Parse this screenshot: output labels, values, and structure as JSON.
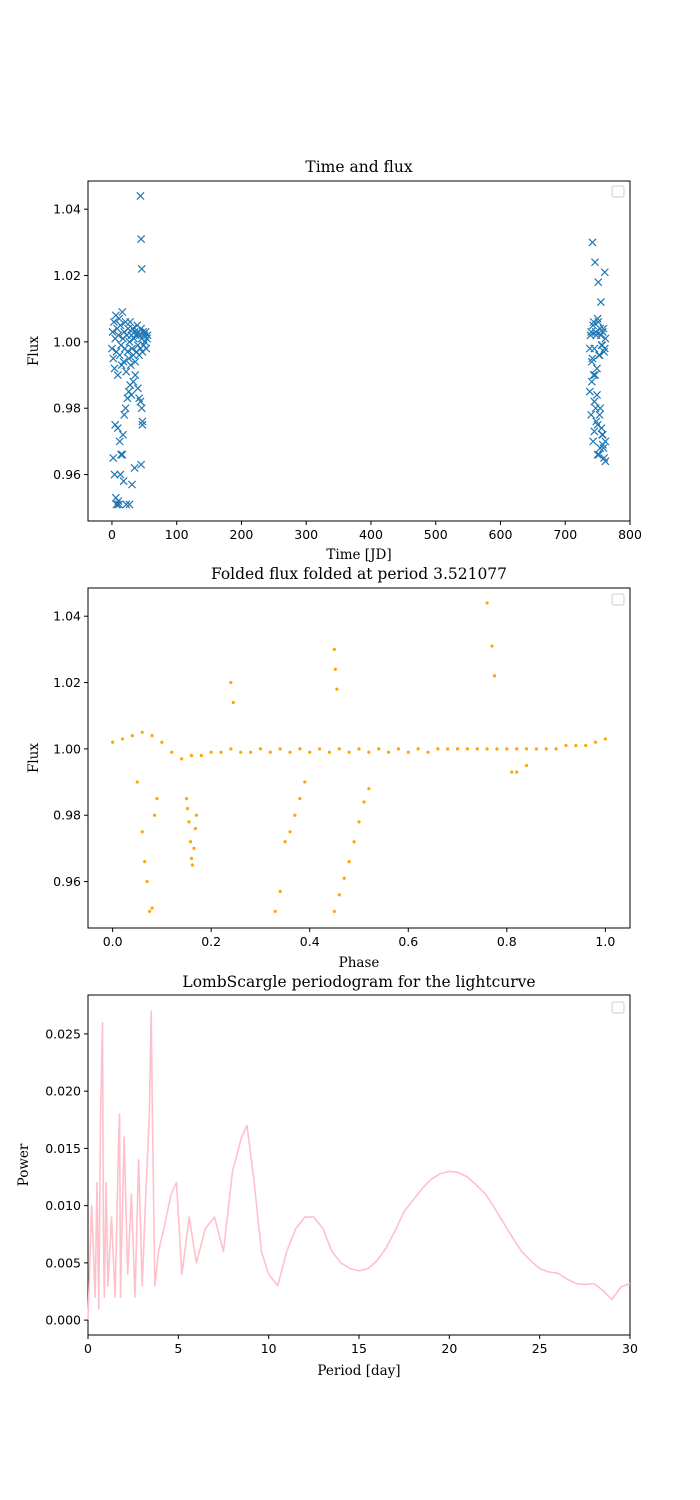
{
  "chart_data": [
    {
      "type": "scatter",
      "title": "Time and flux",
      "xlabel": "Time [JD]",
      "ylabel": "Flux",
      "xlim": [
        -37,
        800
      ],
      "ylim": [
        0.946,
        1.0485
      ],
      "xticks": [
        0,
        100,
        200,
        300,
        400,
        500,
        600,
        700,
        800
      ],
      "yticks": [
        0.96,
        0.98,
        1.0,
        1.02,
        1.04
      ],
      "xtick_labels": [
        "0",
        "100",
        "200",
        "300",
        "400",
        "500",
        "600",
        "700",
        "800"
      ],
      "ytick_labels": [
        "0.96",
        "0.98",
        "1.00",
        "1.02",
        "1.04"
      ],
      "marker": "x",
      "color": "#1f77b4",
      "legend": "empty box, top-right",
      "series": [
        {
          "x": [
            0,
            1,
            2,
            3,
            4,
            5,
            6,
            7,
            8,
            9,
            10,
            11,
            12,
            13,
            14,
            15,
            16,
            17,
            18,
            19,
            20,
            21,
            22,
            23,
            24,
            25,
            26,
            27,
            28,
            29,
            30,
            31,
            32,
            33,
            34,
            35,
            36,
            37,
            38,
            39,
            40,
            41,
            42,
            43,
            44,
            45,
            46,
            47,
            48,
            49,
            50,
            51,
            52,
            53,
            54,
            55,
            5,
            9,
            12,
            14,
            15,
            16,
            6,
            8,
            10,
            13,
            17,
            19,
            21,
            24,
            26,
            28,
            30,
            33,
            36,
            40,
            42,
            44,
            46,
            47,
            2,
            4,
            7,
            11,
            18,
            22,
            27,
            31,
            35,
            45,
            47,
            44,
            45,
            46,
            738,
            740,
            742,
            744,
            746,
            748,
            750,
            752,
            754,
            756,
            758,
            760,
            762,
            739,
            741,
            743,
            745,
            747,
            749,
            751,
            753,
            755,
            757,
            759,
            761,
            738,
            740,
            743,
            747,
            750,
            754,
            757,
            760,
            762,
            741,
            745,
            748,
            752,
            756,
            759,
            744,
            749,
            753,
            758,
            742,
            746,
            751,
            755,
            761,
            745,
            750,
            754,
            758,
            762
          ],
          "y": [
            0.998,
            1.003,
            0.995,
            1.006,
            0.992,
            1.001,
            1.008,
            0.997,
            1.004,
            0.99,
            1.002,
            1.007,
            0.996,
            1.005,
            0.999,
            0.993,
            1.009,
            1.001,
            0.994,
            1.003,
            0.998,
            1.006,
            0.991,
            1.002,
            0.997,
            1.004,
            0.995,
            1.0,
            1.006,
            0.993,
            1.002,
            0.998,
            1.004,
            0.996,
            1.001,
            1.003,
            0.994,
            1.002,
            0.997,
            1.005,
            0.999,
            1.003,
            0.996,
            1.002,
            0.998,
            1.004,
            1.001,
            0.997,
            1.003,
            0.999,
            1.002,
            1.0,
            1.003,
            0.998,
            1.001,
            1.002,
            0.975,
            0.974,
            0.97,
            0.966,
            0.966,
            0.966,
            0.953,
            0.951,
            0.952,
            0.96,
            0.972,
            0.978,
            0.98,
            0.983,
            0.985,
            0.987,
            0.984,
            0.988,
            0.99,
            0.986,
            0.983,
            0.982,
            0.98,
            0.976,
            0.965,
            0.96,
            0.951,
            0.951,
            0.958,
            0.951,
            0.951,
            0.957,
            0.962,
            0.963,
            0.975,
            1.044,
            1.031,
            1.022,
            0.998,
            1.003,
            0.995,
            1.006,
            0.99,
            1.002,
            1.007,
            0.996,
            1.004,
            0.999,
            1.003,
            0.997,
            1.001,
            1.002,
            0.994,
            1.005,
            0.998,
            1.003,
            0.992,
            1.006,
            0.996,
            1.002,
            0.999,
            1.004,
            0.998,
            0.985,
            0.978,
            0.97,
            0.98,
            0.975,
            0.968,
            0.972,
            0.965,
            0.97,
            0.988,
            0.982,
            0.976,
            0.966,
            0.974,
            0.968,
            0.99,
            0.984,
            0.978,
            0.972,
            1.03,
            1.024,
            1.018,
            1.012,
            1.021,
            0.973,
            0.966,
            0.98,
            0.969,
            0.964
          ]
        }
      ]
    },
    {
      "type": "scatter",
      "title": "Folded flux folded at period 3.521077",
      "xlabel": "Phase",
      "ylabel": "Flux",
      "xlim": [
        -0.05,
        1.05
      ],
      "ylim": [
        0.946,
        1.0485
      ],
      "xticks": [
        0.0,
        0.2,
        0.4,
        0.6,
        0.8,
        1.0
      ],
      "yticks": [
        0.96,
        0.98,
        1.0,
        1.02,
        1.04
      ],
      "xtick_labels": [
        "0.0",
        "0.2",
        "0.4",
        "0.6",
        "0.8",
        "1.0"
      ],
      "ytick_labels": [
        "0.96",
        "0.98",
        "1.00",
        "1.02",
        "1.04"
      ],
      "marker": "dot",
      "color": "#ffa500",
      "legend": "empty box, top-right",
      "series": [
        {
          "x": [
            0.0,
            0.02,
            0.04,
            0.06,
            0.08,
            0.1,
            0.12,
            0.14,
            0.16,
            0.18,
            0.2,
            0.22,
            0.24,
            0.26,
            0.28,
            0.3,
            0.32,
            0.34,
            0.36,
            0.38,
            0.4,
            0.42,
            0.44,
            0.46,
            0.48,
            0.5,
            0.52,
            0.54,
            0.56,
            0.58,
            0.6,
            0.62,
            0.64,
            0.66,
            0.68,
            0.7,
            0.72,
            0.74,
            0.76,
            0.78,
            0.8,
            0.82,
            0.84,
            0.86,
            0.88,
            0.9,
            0.92,
            0.94,
            0.96,
            0.98,
            1.0,
            0.05,
            0.06,
            0.065,
            0.07,
            0.075,
            0.08,
            0.085,
            0.09,
            0.15,
            0.152,
            0.155,
            0.158,
            0.16,
            0.162,
            0.165,
            0.168,
            0.17,
            0.33,
            0.34,
            0.35,
            0.36,
            0.37,
            0.38,
            0.39,
            0.45,
            0.46,
            0.47,
            0.48,
            0.49,
            0.5,
            0.51,
            0.52,
            0.24,
            0.245,
            0.45,
            0.452,
            0.455,
            0.76,
            0.77,
            0.775,
            0.81,
            0.82,
            0.84
          ],
          "y": [
            1.002,
            1.003,
            1.004,
            1.005,
            1.004,
            1.002,
            0.999,
            0.997,
            0.998,
            0.998,
            0.999,
            0.999,
            1.0,
            0.999,
            0.999,
            1.0,
            0.999,
            1.0,
            0.999,
            1.0,
            0.999,
            1.0,
            0.999,
            1.0,
            0.999,
            1.0,
            0.999,
            1.0,
            0.999,
            1.0,
            0.999,
            1.0,
            0.999,
            1.0,
            1.0,
            1.0,
            1.0,
            1.0,
            1.0,
            1.0,
            1.0,
            1.0,
            1.0,
            1.0,
            1.0,
            1.0,
            1.001,
            1.001,
            1.001,
            1.002,
            1.003,
            0.99,
            0.975,
            0.966,
            0.96,
            0.951,
            0.952,
            0.98,
            0.985,
            0.985,
            0.982,
            0.978,
            0.972,
            0.967,
            0.965,
            0.97,
            0.976,
            0.98,
            0.951,
            0.957,
            0.972,
            0.975,
            0.98,
            0.985,
            0.99,
            0.951,
            0.956,
            0.961,
            0.966,
            0.972,
            0.978,
            0.984,
            0.988,
            1.02,
            1.014,
            1.03,
            1.024,
            1.018,
            1.044,
            1.031,
            1.022,
            0.993,
            0.993,
            0.995
          ]
        }
      ]
    },
    {
      "type": "line",
      "title": "LombScargle periodogram for the lightcurve",
      "xlabel": "Period [day]",
      "ylabel": "Power",
      "xlim": [
        0,
        30
      ],
      "ylim": [
        -0.0013,
        0.0284
      ],
      "xticks": [
        0,
        5,
        10,
        15,
        20,
        25,
        30
      ],
      "yticks": [
        0.0,
        0.005,
        0.01,
        0.015,
        0.02,
        0.025
      ],
      "xtick_labels": [
        "0",
        "5",
        "10",
        "15",
        "20",
        "25",
        "30"
      ],
      "ytick_labels": [
        "0.000",
        "0.005",
        "0.010",
        "0.015",
        "0.020",
        "0.025"
      ],
      "color": "#ffc0cb",
      "legend": "empty box, top-right",
      "series": [
        {
          "x": [
            0.0,
            0.2,
            0.4,
            0.5,
            0.6,
            0.7,
            0.8,
            0.85,
            0.9,
            1.0,
            1.1,
            1.3,
            1.5,
            1.7,
            1.75,
            1.8,
            2.0,
            2.2,
            2.4,
            2.6,
            2.8,
            3.0,
            3.2,
            3.4,
            3.5,
            3.55,
            3.7,
            3.9,
            4.2,
            4.6,
            4.9,
            5.2,
            5.6,
            6.0,
            6.5,
            7.0,
            7.5,
            8.0,
            8.5,
            8.8,
            9.2,
            9.6,
            10.0,
            10.5,
            11.0,
            11.5,
            12.0,
            12.5,
            13.0,
            13.5,
            14.0,
            14.5,
            15.0,
            15.5,
            16.0,
            16.5,
            17.0,
            17.5,
            18.0,
            18.5,
            19.0,
            19.5,
            20.0,
            20.5,
            21.0,
            21.5,
            22.0,
            22.5,
            23.0,
            23.5,
            24.0,
            24.5,
            25.0,
            25.5,
            26.0,
            26.5,
            27.0,
            27.5,
            28.0,
            28.5,
            29.0,
            29.5,
            30.0
          ],
          "y": [
            0.0,
            0.01,
            0.002,
            0.012,
            0.001,
            0.018,
            0.026,
            0.008,
            0.002,
            0.012,
            0.003,
            0.009,
            0.002,
            0.016,
            0.018,
            0.002,
            0.016,
            0.004,
            0.011,
            0.002,
            0.014,
            0.003,
            0.011,
            0.018,
            0.027,
            0.02,
            0.003,
            0.006,
            0.008,
            0.011,
            0.012,
            0.004,
            0.009,
            0.005,
            0.008,
            0.009,
            0.006,
            0.013,
            0.016,
            0.017,
            0.012,
            0.006,
            0.004,
            0.003,
            0.006,
            0.008,
            0.009,
            0.009,
            0.008,
            0.006,
            0.005,
            0.0045,
            0.0043,
            0.0045,
            0.0052,
            0.0063,
            0.0078,
            0.0095,
            0.0105,
            0.0115,
            0.0123,
            0.0128,
            0.013,
            0.0129,
            0.0125,
            0.0118,
            0.011,
            0.0098,
            0.0085,
            0.0072,
            0.006,
            0.0052,
            0.0045,
            0.0042,
            0.0041,
            0.0036,
            0.0032,
            0.0031,
            0.0032,
            0.0026,
            0.0018,
            0.0029,
            0.0032
          ]
        }
      ]
    }
  ]
}
